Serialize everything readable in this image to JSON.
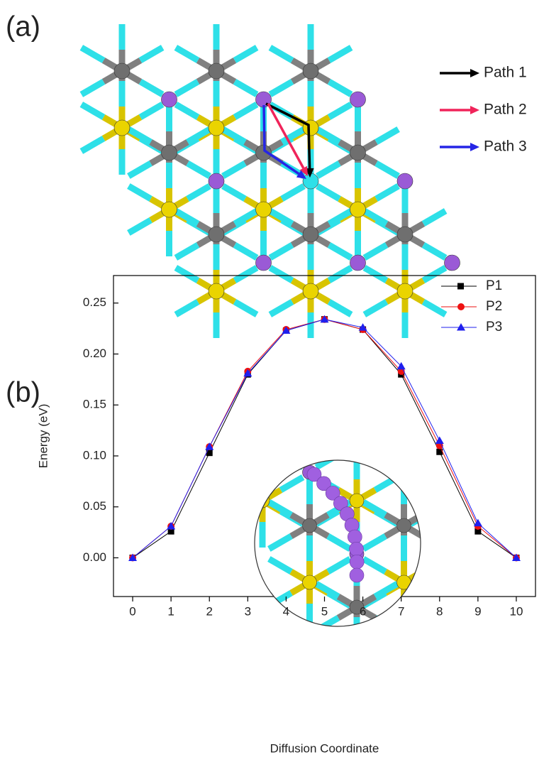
{
  "panel_a": {
    "label": "(a)",
    "legend": [
      {
        "name": "Path 1",
        "color": "#000000"
      },
      {
        "name": "Path 2",
        "color": "#f0245a"
      },
      {
        "name": "Path 3",
        "color": "#2525e6"
      }
    ]
  },
  "chart_data": {
    "type": "line",
    "panel_label": "(b)",
    "x_label": "Diffusion Coordinate",
    "y_label": "Energy (eV)",
    "x": [
      0,
      1,
      2,
      3,
      4,
      5,
      6,
      7,
      8,
      9,
      10
    ],
    "series": [
      {
        "name": "P1",
        "color": "#000000",
        "marker": "square",
        "values": [
          0,
          0.026,
          0.103,
          0.18,
          0.223,
          0.234,
          0.224,
          0.18,
          0.104,
          0.026,
          0
        ]
      },
      {
        "name": "P2",
        "color": "#ee1111",
        "marker": "circle",
        "values": [
          0,
          0.031,
          0.109,
          0.183,
          0.224,
          0.234,
          0.224,
          0.183,
          0.11,
          0.031,
          0
        ]
      },
      {
        "name": "P3",
        "color": "#1f1fee",
        "marker": "triangle",
        "values": [
          0,
          0.031,
          0.109,
          0.181,
          0.223,
          0.234,
          0.226,
          0.188,
          0.115,
          0.034,
          0
        ]
      }
    ],
    "xlim": [
      -0.5,
      10.5
    ],
    "ylim": [
      -0.038,
      0.277
    ],
    "xticks": [
      0,
      1,
      2,
      3,
      4,
      5,
      6,
      7,
      8,
      9,
      10
    ],
    "yticks": [
      {
        "value": 0,
        "label": "0.00"
      },
      {
        "value": 0.05,
        "label": "0.05"
      },
      {
        "value": 0.1,
        "label": "0.10"
      },
      {
        "value": 0.15,
        "label": "0.15"
      },
      {
        "value": 0.2,
        "label": "0.20"
      },
      {
        "value": 0.25,
        "label": "0.25"
      }
    ],
    "legend_position": "upper right"
  }
}
